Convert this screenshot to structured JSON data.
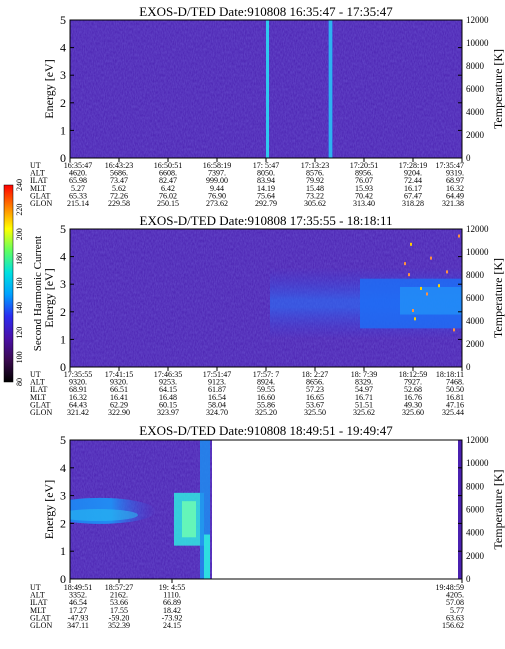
{
  "chart_data": {
    "type": "heatmap",
    "panels": [
      {
        "title": "EXOS-D/TED   Date:910808  16:35:47 - 17:35:47",
        "ylabel": "Energy [eV]",
        "ylim": [
          0,
          5
        ],
        "yticks": [
          "0",
          "1",
          "2",
          "3",
          "4",
          "5"
        ],
        "y2label": "Temperature [K]",
        "y2lim": [
          0,
          12000
        ],
        "y2ticks": [
          "0",
          "2000",
          "4000",
          "6000",
          "8000",
          "10000",
          "12000"
        ],
        "row_labels": [
          "UT",
          "ALT",
          "ILAT",
          "MLT",
          "GLAT",
          "GLON"
        ],
        "columns": [
          [
            "16:35:47",
            "4620.",
            "65.98",
            "5.27",
            "65.33",
            "215.14"
          ],
          [
            "16:43:23",
            "5686.",
            "73.47",
            "5.62",
            "72.26",
            "229.58"
          ],
          [
            "16:50:51",
            "6608.",
            "82.47",
            "6.42",
            "76.02",
            "250.15"
          ],
          [
            "16:58:19",
            "7397.",
            "999.00",
            "9.44",
            "76.90",
            "273.62"
          ],
          [
            "17: 5:47",
            "8050.",
            "83.94",
            "14.19",
            "75.64",
            "292.79"
          ],
          [
            "17:13:23",
            "8576.",
            "79.92",
            "15.48",
            "73.22",
            "305.62"
          ],
          [
            "17:20:51",
            "8956.",
            "76.07",
            "15.93",
            "70.42",
            "313.40"
          ],
          [
            "17:28:19",
            "9204.",
            "72.44",
            "16.17",
            "67.47",
            "318.28"
          ],
          [
            "17:35:47",
            "9319.",
            "68.97",
            "16.32",
            "64.49",
            "321.38"
          ]
        ]
      },
      {
        "title": "EXOS-D/TED   Date:910808  17:35:55 - 18:18:11",
        "ylabel": "Energy [eV]",
        "ylim": [
          0,
          5
        ],
        "yticks": [
          "0",
          "1",
          "2",
          "3",
          "4",
          "5"
        ],
        "y2label": "Temperature [K]",
        "y2lim": [
          0,
          12000
        ],
        "y2ticks": [
          "0",
          "2000",
          "4000",
          "6000",
          "8000",
          "10000",
          "12000"
        ],
        "row_labels": [
          "UT",
          "ALT",
          "ILAT",
          "MLT",
          "GLAT",
          "GLON"
        ],
        "columns": [
          [
            "17:35:55",
            "9320.",
            "68.91",
            "16.32",
            "64.43",
            "321.42"
          ],
          [
            "17:41:15",
            "9320.",
            "66.51",
            "16.41",
            "62.29",
            "322.90"
          ],
          [
            "17:46:35",
            "9253.",
            "64.15",
            "16.48",
            "60.15",
            "323.97"
          ],
          [
            "17:51:47",
            "9123.",
            "61.87",
            "16.54",
            "58.04",
            "324.70"
          ],
          [
            "17:57: 7",
            "8924.",
            "59.55",
            "16.60",
            "55.86",
            "325.20"
          ],
          [
            "18: 2:27",
            "8656.",
            "57.23",
            "16.65",
            "53.67",
            "325.50"
          ],
          [
            "18: 7:39",
            "8329.",
            "54.97",
            "16.71",
            "51.51",
            "325.62"
          ],
          [
            "18:12:59",
            "7927.",
            "52.68",
            "16.76",
            "49.30",
            "325.60"
          ],
          [
            "18:18:11",
            "7468.",
            "50.50",
            "16.81",
            "47.16",
            "325.44"
          ]
        ]
      },
      {
        "title": "EXOS-D/TED   Date:910808  18:49:51 - 19:49:47",
        "ylabel": "Energy [eV]",
        "ylim": [
          0,
          5
        ],
        "yticks": [
          "0",
          "1",
          "2",
          "3",
          "4",
          "5"
        ],
        "y2label": "Temperature [K]",
        "y2lim": [
          0,
          12000
        ],
        "y2ticks": [
          "0",
          "2000",
          "4000",
          "6000",
          "8000",
          "10000",
          "12000"
        ],
        "row_labels": [
          "UT",
          "ALT",
          "ILAT",
          "MLT",
          "GLAT",
          "GLON"
        ],
        "columns": [
          [
            "18:49:51",
            "3352.",
            "46.54",
            "17.27",
            "-47.93",
            "347.11"
          ],
          [
            "18:57:27",
            "2162.",
            "53.66",
            "17.55",
            "-59.20",
            "352.39"
          ],
          [
            "19: 4:55",
            "1110.",
            "66.89",
            "18.42",
            "-73.92",
            "24.15"
          ],
          [
            "19:48:59",
            "4205.",
            "57.08",
            "5.77",
            "63.63",
            "156.62"
          ]
        ]
      }
    ],
    "colorbar": {
      "label": "Second Harmonic Current",
      "range": [
        80,
        240
      ],
      "ticks": [
        "80",
        "100",
        "120",
        "140",
        "160",
        "180",
        "200",
        "220",
        "240"
      ],
      "colors": [
        "#000000",
        "#3a0a50",
        "#4a10a8",
        "#2c2cf0",
        "#00a0ff",
        "#00e0e0",
        "#60ff60",
        "#ffff00",
        "#ff8000",
        "#ff0000"
      ]
    },
    "colors": {
      "background": "#4a20b0",
      "mid_band": "#3050e8",
      "bright": "#30e0e8"
    }
  }
}
